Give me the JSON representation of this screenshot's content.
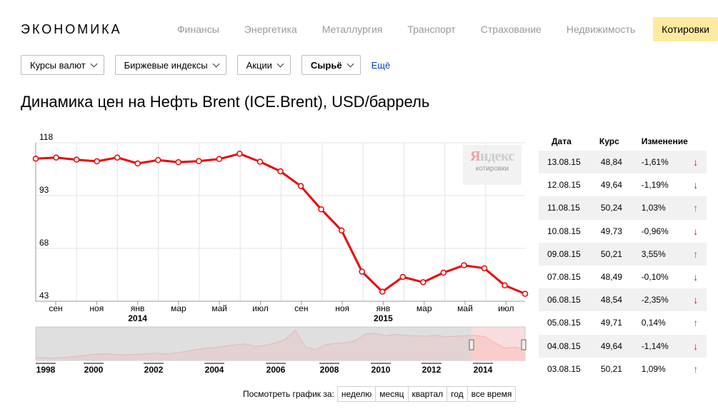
{
  "header": {
    "logo": "ЭКОНОМИКА",
    "nav": [
      "Финансы",
      "Энергетика",
      "Металлургия",
      "Транспорт",
      "Страхование",
      "Недвижимость",
      "Котировки"
    ],
    "active_nav": "Котировки"
  },
  "filters": {
    "dropdowns": [
      "Курсы валют",
      "Биржевые индексы",
      "Акции",
      "Сырьё"
    ],
    "selected": "Сырьё",
    "more": "Ещё"
  },
  "title": "Динамика цен на Нефть Brent (ICE.Brent), USD/баррель",
  "watermark": {
    "brand_first": "Я",
    "brand_rest": "ндекс",
    "sub": "котировки"
  },
  "chart_data": {
    "type": "line",
    "ylim": [
      43,
      118
    ],
    "yticks": [
      118,
      93,
      68,
      43
    ],
    "x_month_labels": [
      "сен",
      "ноя",
      "янв",
      "мар",
      "май",
      "июл",
      "сен",
      "ноя",
      "янв",
      "мар",
      "май",
      "июл"
    ],
    "x_year_labels": [
      {
        "label": "2014",
        "under": 2
      },
      {
        "label": "2015",
        "under": 8
      }
    ],
    "series": [
      {
        "color": "#ee0000",
        "values": [
          110.5,
          111.0,
          110.0,
          109.2,
          111.0,
          108.2,
          109.8,
          108.8,
          109.3,
          110.3,
          112.8,
          109.0,
          104.5,
          97.5,
          86.5,
          76.5,
          57.0,
          47.5,
          54.5,
          52.0,
          56.5,
          60.0,
          58.6,
          50.5,
          46.5
        ]
      }
    ],
    "navigator": {
      "year_labels": [
        "1998",
        "2000",
        "2002",
        "2004",
        "2006",
        "2008",
        "2010",
        "2012",
        "2014"
      ],
      "history": [
        13,
        12,
        11,
        14,
        18,
        24,
        28,
        30,
        26,
        25,
        27,
        30,
        33,
        29,
        33,
        40,
        48,
        55,
        58,
        65,
        70,
        74,
        62,
        68,
        78,
        95,
        135,
        60,
        48,
        70,
        76,
        80,
        88,
        118,
        122,
        110,
        116,
        112,
        110,
        108,
        112,
        106,
        108,
        110,
        112,
        105,
        78,
        55,
        60,
        50
      ]
    }
  },
  "period": {
    "label": "Посмотреть график за:",
    "options": [
      "неделю",
      "месяц",
      "квартал",
      "год",
      "все время"
    ]
  },
  "table": {
    "headers": [
      "Дата",
      "Курс",
      "Изменение"
    ],
    "rows": [
      {
        "date": "13.08.15",
        "rate": "48,84",
        "change": "-1,61%",
        "dir": "down"
      },
      {
        "date": "12.08.15",
        "rate": "49,64",
        "change": "-1,19%",
        "dir": "down"
      },
      {
        "date": "11.08.15",
        "rate": "50,24",
        "change": "1,03%",
        "dir": "up"
      },
      {
        "date": "10.08.15",
        "rate": "49,73",
        "change": "-0,96%",
        "dir": "down"
      },
      {
        "date": "09.08.15",
        "rate": "50,21",
        "change": "3,55%",
        "dir": "up"
      },
      {
        "date": "07.08.15",
        "rate": "48,49",
        "change": "-0,10%",
        "dir": "down"
      },
      {
        "date": "06.08.15",
        "rate": "48,54",
        "change": "-2,35%",
        "dir": "down"
      },
      {
        "date": "05.08.15",
        "rate": "49,71",
        "change": "0,14%",
        "dir": "up"
      },
      {
        "date": "04.08.15",
        "rate": "49,64",
        "change": "-1,14%",
        "dir": "down"
      },
      {
        "date": "03.08.15",
        "rate": "50,21",
        "change": "1,09%",
        "dir": "up"
      }
    ],
    "arrows": {
      "up": "↑",
      "down": "↓"
    }
  }
}
